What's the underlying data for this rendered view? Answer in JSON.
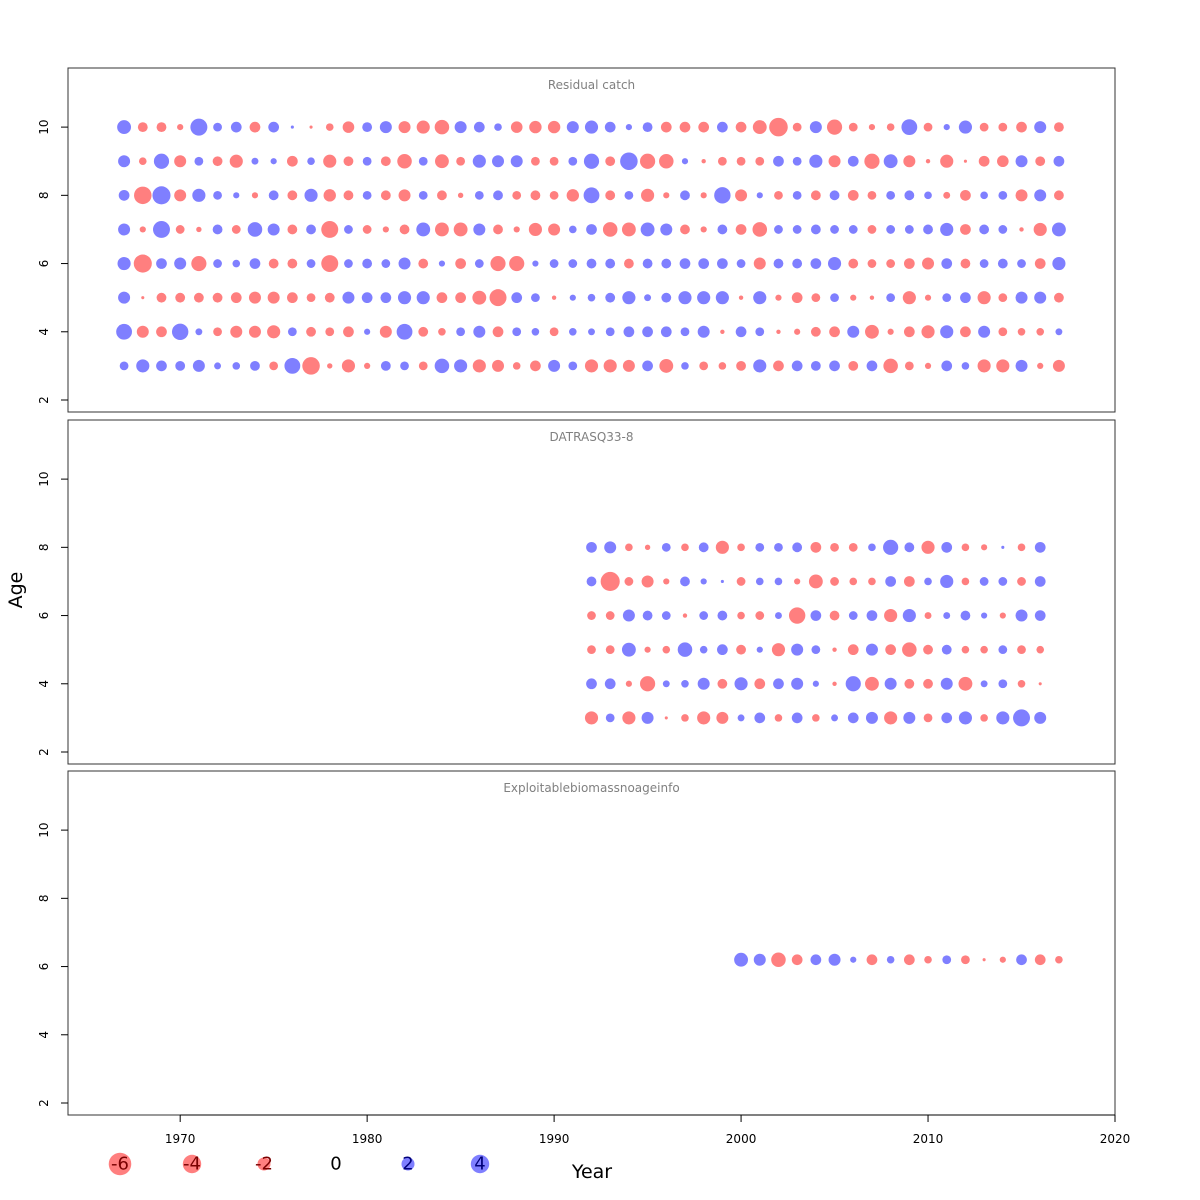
{
  "colors": {
    "negative": "#FF0000",
    "positive": "#0000FF",
    "bubble_opacity": 0.5,
    "frame": "#333333",
    "panel_title": "#808080"
  },
  "chart_data": {
    "type": "scatter",
    "subtype": "bubble",
    "xlabel": "Year",
    "ylabel": "Age",
    "xlim": [
      1964,
      2020
    ],
    "ylim": [
      2,
      11
    ],
    "x_ticks": [
      1970,
      1980,
      1990,
      2000,
      2010,
      2020
    ],
    "y_ticks": [
      2,
      4,
      6,
      8,
      10
    ],
    "years": [
      1967,
      1968,
      1969,
      1970,
      1971,
      1972,
      1973,
      1974,
      1975,
      1976,
      1977,
      1978,
      1979,
      1980,
      1981,
      1982,
      1983,
      1984,
      1985,
      1986,
      1987,
      1988,
      1989,
      1990,
      1991,
      1992,
      1993,
      1994,
      1995,
      1996,
      1997,
      1998,
      1999,
      2000,
      2001,
      2002,
      2003,
      2004,
      2005,
      2006,
      2007,
      2008,
      2009,
      2010,
      2011,
      2012,
      2013,
      2014,
      2015,
      2016,
      2017
    ],
    "legend": [
      {
        "label": "-6",
        "value": -6
      },
      {
        "label": "-4",
        "value": -4
      },
      {
        "label": "-2",
        "value": -2
      },
      {
        "label": "0",
        "value": 0
      },
      {
        "label": "2",
        "value": 2
      },
      {
        "label": "4",
        "value": 4
      }
    ],
    "panels": [
      {
        "title": "Residual catch",
        "first_year": 1967,
        "rows": [
          {
            "age": 10,
            "residuals": [
              2.0,
              -1.0,
              -1.0,
              -0.4,
              3.0,
              0.8,
              1.2,
              -1.2,
              1.2,
              0.1,
              -0.1,
              -0.6,
              -1.4,
              1.0,
              1.5,
              -1.5,
              -1.8,
              -2.2,
              1.5,
              1.2,
              0.6,
              -1.4,
              -1.6,
              -1.6,
              1.5,
              1.8,
              1.2,
              0.4,
              1.0,
              -1.2,
              -1.2,
              -1.2,
              1.2,
              -1.2,
              -2.0,
              -3.6,
              -0.8,
              1.5,
              -2.4,
              -0.8,
              -0.4,
              -0.6,
              2.6,
              -0.8,
              0.4,
              1.8,
              -0.8,
              -0.8,
              -1.2,
              1.5,
              -1.0
            ]
          },
          {
            "age": 9,
            "residuals": [
              1.5,
              -0.6,
              2.4,
              -1.5,
              0.8,
              -1.0,
              -1.8,
              0.5,
              0.4,
              -1.2,
              0.6,
              -1.8,
              -1.0,
              0.8,
              -1.0,
              -2.2,
              0.8,
              -2.0,
              -0.8,
              1.8,
              1.5,
              1.5,
              -0.8,
              -0.8,
              0.8,
              2.4,
              -1.0,
              3.2,
              -2.4,
              -2.2,
              0.4,
              -0.2,
              -0.8,
              -0.8,
              -0.8,
              1.2,
              0.8,
              1.8,
              -1.5,
              1.2,
              -2.4,
              2.0,
              -1.5,
              -0.2,
              -1.8,
              -0.1,
              -1.2,
              -1.4,
              1.5,
              -1.0,
              1.2
            ]
          },
          {
            "age": 8,
            "residuals": [
              1.2,
              -3.2,
              3.4,
              -1.5,
              1.8,
              0.8,
              0.4,
              -0.4,
              1.0,
              -1.0,
              1.8,
              -1.6,
              -1.0,
              0.8,
              -1.0,
              -1.5,
              0.8,
              -1.0,
              -0.3,
              0.8,
              1.0,
              -0.8,
              -1.0,
              -0.8,
              -1.6,
              2.6,
              -1.0,
              0.8,
              -1.8,
              -0.4,
              1.0,
              -0.4,
              2.8,
              -1.5,
              0.4,
              -0.8,
              0.8,
              -1.0,
              1.0,
              -1.2,
              -0.8,
              0.8,
              1.0,
              0.6,
              -0.5,
              -1.2,
              0.6,
              0.8,
              -1.5,
              1.5,
              -1.0
            ]
          },
          {
            "age": 7,
            "residuals": [
              1.5,
              -0.4,
              3.0,
              -0.8,
              -0.3,
              1.0,
              -0.8,
              2.2,
              1.5,
              -1.0,
              1.0,
              -3.0,
              0.8,
              -0.8,
              -0.4,
              -1.0,
              2.0,
              -2.0,
              -2.0,
              1.5,
              -1.0,
              -0.4,
              -1.8,
              -1.5,
              0.6,
              1.2,
              -2.2,
              -2.0,
              2.0,
              1.5,
              -1.0,
              -0.4,
              1.0,
              -1.2,
              -2.2,
              0.8,
              0.8,
              1.0,
              0.8,
              0.8,
              -0.8,
              0.8,
              0.8,
              1.0,
              1.8,
              -1.2,
              1.0,
              0.8,
              -0.2,
              -1.8,
              2.0
            ]
          },
          {
            "age": 6,
            "residuals": [
              1.8,
              -3.4,
              1.2,
              1.5,
              -2.4,
              0.8,
              0.6,
              1.2,
              -1.0,
              -1.0,
              0.8,
              -3.0,
              0.8,
              1.0,
              0.8,
              1.5,
              -1.0,
              0.4,
              -1.2,
              0.8,
              -2.4,
              -2.4,
              0.4,
              0.8,
              0.8,
              1.0,
              1.0,
              -1.0,
              1.0,
              1.0,
              1.2,
              1.2,
              1.2,
              0.8,
              -1.5,
              1.0,
              1.0,
              1.2,
              1.8,
              -1.0,
              -0.8,
              -0.8,
              -1.2,
              -1.5,
              1.2,
              -1.0,
              0.8,
              1.0,
              0.8,
              -1.2,
              1.8
            ]
          },
          {
            "age": 5,
            "residuals": [
              1.5,
              -0.1,
              -1.0,
              -1.0,
              -1.0,
              -1.0,
              -1.2,
              -1.5,
              -1.5,
              -1.2,
              -0.8,
              -1.0,
              1.5,
              1.2,
              1.2,
              1.8,
              1.8,
              -1.2,
              -1.2,
              -2.0,
              -3.0,
              1.2,
              0.8,
              -0.2,
              0.4,
              0.6,
              1.0,
              1.8,
              0.5,
              1.0,
              1.8,
              1.8,
              1.8,
              -0.2,
              1.8,
              -0.4,
              -1.2,
              -0.8,
              0.8,
              -0.4,
              -0.2,
              0.8,
              -1.8,
              -0.4,
              0.8,
              1.2,
              -1.8,
              -0.8,
              1.5,
              1.5,
              -1.0
            ]
          },
          {
            "age": 4,
            "residuals": [
              2.6,
              -1.5,
              -1.2,
              2.8,
              0.5,
              -0.8,
              -1.5,
              -1.5,
              -1.8,
              0.8,
              -1.0,
              -0.8,
              -1.2,
              0.4,
              -1.5,
              2.6,
              -1.0,
              -0.6,
              0.8,
              1.5,
              -1.2,
              0.8,
              0.6,
              -0.8,
              0.6,
              0.5,
              0.8,
              1.2,
              1.2,
              1.2,
              0.8,
              1.5,
              -0.2,
              1.2,
              0.8,
              -0.2,
              -0.4,
              -1.0,
              -1.2,
              1.5,
              -2.0,
              -0.4,
              -1.2,
              -1.8,
              1.8,
              -1.2,
              1.5,
              -0.8,
              -0.6,
              -0.6,
              0.5
            ]
          },
          {
            "age": 3,
            "residuals": [
              0.8,
              1.8,
              1.2,
              1.0,
              1.5,
              0.5,
              0.6,
              1.0,
              -0.8,
              2.6,
              -3.2,
              -0.3,
              -1.8,
              -0.4,
              1.0,
              0.8,
              -0.8,
              2.2,
              1.8,
              -1.8,
              -1.5,
              -0.6,
              -1.2,
              1.5,
              0.8,
              -1.8,
              -1.8,
              -1.5,
              1.2,
              -2.0,
              0.6,
              -0.8,
              -0.6,
              -1.0,
              1.8,
              -1.2,
              1.2,
              1.0,
              1.2,
              -1.0,
              1.2,
              -2.2,
              -0.8,
              -0.4,
              1.2,
              0.6,
              -1.8,
              -1.8,
              1.5,
              -0.4,
              -1.5
            ]
          }
        ]
      },
      {
        "title": "DATRASQ33-8",
        "first_year": 1992,
        "rows": [
          {
            "age": 8,
            "residuals": [
              1.2,
              1.5,
              -0.6,
              -0.3,
              0.8,
              -0.6,
              1.0,
              -1.8,
              -0.6,
              0.8,
              0.8,
              1.0,
              -1.2,
              -0.8,
              -0.8,
              0.6,
              2.4,
              1.0,
              -1.8,
              1.2,
              -0.6,
              -0.4,
              0.1,
              -0.6,
              1.2
            ]
          },
          {
            "age": 7,
            "residuals": [
              1.0,
              -3.8,
              -0.8,
              -1.5,
              -0.4,
              1.0,
              0.4,
              0.1,
              -0.8,
              0.6,
              0.6,
              -0.4,
              -2.0,
              -0.8,
              -0.6,
              -0.6,
              1.2,
              -1.2,
              0.6,
              1.8,
              -0.6,
              0.8,
              0.8,
              -0.8,
              1.2
            ]
          },
          {
            "age": 6,
            "residuals": [
              -0.8,
              -0.8,
              1.5,
              1.0,
              0.8,
              -0.2,
              0.8,
              1.0,
              -0.6,
              -0.8,
              0.5,
              -2.8,
              1.2,
              -1.0,
              0.8,
              1.2,
              -1.8,
              1.8,
              -0.5,
              0.5,
              1.0,
              0.4,
              -0.4,
              1.5,
              1.2
            ]
          },
          {
            "age": 5,
            "residuals": [
              -0.8,
              -0.8,
              2.0,
              -0.4,
              -0.6,
              2.2,
              0.6,
              1.2,
              -1.0,
              0.4,
              -1.8,
              1.5,
              0.8,
              -0.2,
              -1.2,
              1.5,
              -1.2,
              -2.2,
              -1.0,
              1.0,
              -0.6,
              -0.6,
              0.8,
              -0.8,
              -0.6
            ]
          },
          {
            "age": 4,
            "residuals": [
              1.2,
              1.2,
              -0.4,
              -2.4,
              0.5,
              0.6,
              1.5,
              -1.0,
              1.8,
              -1.2,
              1.2,
              1.5,
              0.4,
              -0.2,
              2.4,
              -2.0,
              1.5,
              -1.0,
              -1.0,
              1.5,
              -2.0,
              0.5,
              0.8,
              -0.6,
              -0.1
            ]
          },
          {
            "age": 3,
            "residuals": [
              -1.8,
              0.8,
              -1.8,
              1.5,
              -0.1,
              -0.6,
              -1.8,
              -1.5,
              0.5,
              1.2,
              -0.6,
              1.2,
              -0.6,
              0.5,
              1.2,
              1.5,
              -1.8,
              1.5,
              -0.8,
              1.2,
              1.8,
              -0.6,
              1.8,
              3.0,
              1.5
            ]
          }
        ]
      },
      {
        "title": "Exploitablebiomassnoageinfo",
        "first_year": 2000,
        "rows": [
          {
            "age": 6.2,
            "residuals": [
              2.0,
              1.5,
              -2.2,
              -1.2,
              1.2,
              1.5,
              0.4,
              -1.2,
              0.6,
              -1.2,
              -0.6,
              0.8,
              -0.8,
              -0.1,
              -0.4,
              1.2,
              -1.2,
              -0.6
            ]
          }
        ]
      }
    ]
  }
}
